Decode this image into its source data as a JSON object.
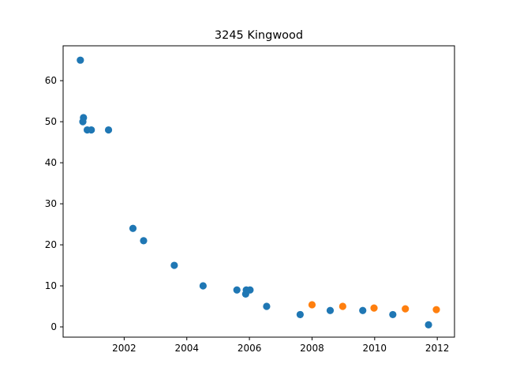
{
  "chart_data": {
    "type": "scatter",
    "title": "3245 Kingwood",
    "xlabel": "",
    "ylabel": "",
    "xlim": [
      2000.05,
      2012.55
    ],
    "ylim": [
      -2.5,
      68.5
    ],
    "x_ticks": [
      {
        "value": 2002,
        "label": "2002"
      },
      {
        "value": 2004,
        "label": "2004"
      },
      {
        "value": 2006,
        "label": "2006"
      },
      {
        "value": 2008,
        "label": "2008"
      },
      {
        "value": 2010,
        "label": "2010"
      },
      {
        "value": 2012,
        "label": "2012"
      }
    ],
    "y_ticks": [
      {
        "value": 0,
        "label": "0"
      },
      {
        "value": 10,
        "label": "10"
      },
      {
        "value": 20,
        "label": "20"
      },
      {
        "value": 30,
        "label": "30"
      },
      {
        "value": 40,
        "label": "40"
      },
      {
        "value": 50,
        "label": "50"
      },
      {
        "value": 60,
        "label": "60"
      }
    ],
    "grid": false,
    "series": [
      {
        "color": "#1f77b4",
        "points": [
          {
            "x": 2000.6,
            "y": 65
          },
          {
            "x": 2000.7,
            "y": 51
          },
          {
            "x": 2000.68,
            "y": 50
          },
          {
            "x": 2000.82,
            "y": 48
          },
          {
            "x": 2000.95,
            "y": 48
          },
          {
            "x": 2001.5,
            "y": 48
          },
          {
            "x": 2002.28,
            "y": 24
          },
          {
            "x": 2002.62,
            "y": 21
          },
          {
            "x": 2003.6,
            "y": 15
          },
          {
            "x": 2004.52,
            "y": 10
          },
          {
            "x": 2005.6,
            "y": 9
          },
          {
            "x": 2005.9,
            "y": 9
          },
          {
            "x": 2006.02,
            "y": 9
          },
          {
            "x": 2005.88,
            "y": 8
          },
          {
            "x": 2006.55,
            "y": 5
          },
          {
            "x": 2007.62,
            "y": 3
          },
          {
            "x": 2008.58,
            "y": 4
          },
          {
            "x": 2009.62,
            "y": 4
          },
          {
            "x": 2010.58,
            "y": 3
          },
          {
            "x": 2011.72,
            "y": 0.5
          }
        ]
      },
      {
        "color": "#ff7f0e",
        "points": [
          {
            "x": 2008.0,
            "y": 5.4
          },
          {
            "x": 2008.98,
            "y": 5.0
          },
          {
            "x": 2009.98,
            "y": 4.6
          },
          {
            "x": 2010.98,
            "y": 4.4
          },
          {
            "x": 2011.97,
            "y": 4.2
          }
        ]
      }
    ]
  }
}
